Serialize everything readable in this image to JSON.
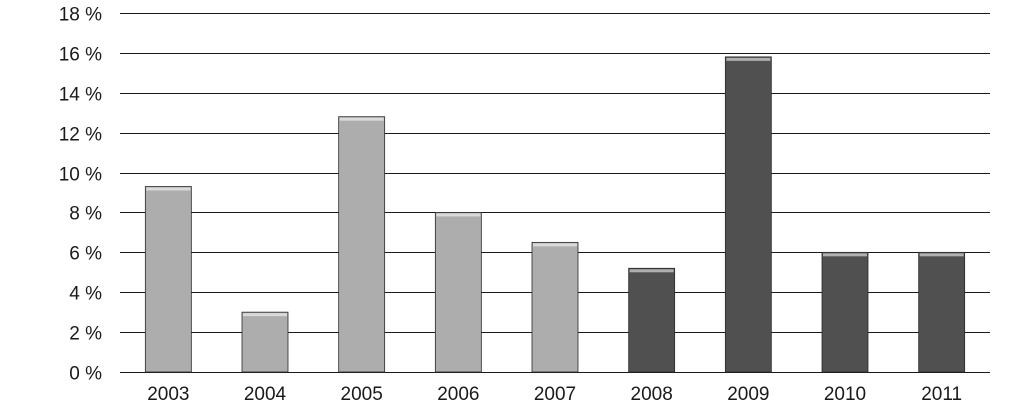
{
  "chart_data": {
    "type": "bar",
    "title": "",
    "xlabel": "",
    "ylabel": "",
    "categories": [
      "2003",
      "2004",
      "2005",
      "2006",
      "2007",
      "2008",
      "2009",
      "2010",
      "2011"
    ],
    "values": [
      9.3,
      3.0,
      12.8,
      8.0,
      6.5,
      5.2,
      15.8,
      6.0,
      6.0
    ],
    "colors": [
      "#adadad",
      "#adadad",
      "#adadad",
      "#adadad",
      "#adadad",
      "#505050",
      "#505050",
      "#505050",
      "#505050"
    ],
    "ylim": [
      0,
      18
    ],
    "yticks": [
      0,
      2,
      4,
      6,
      8,
      10,
      12,
      14,
      16,
      18
    ],
    "ytick_labels": [
      "0 %",
      "2 %",
      "4 %",
      "6 %",
      "8 %",
      "10 %",
      "12 %",
      "14 %",
      "16 %",
      "18 %"
    ],
    "grid": true,
    "legend": "none"
  }
}
